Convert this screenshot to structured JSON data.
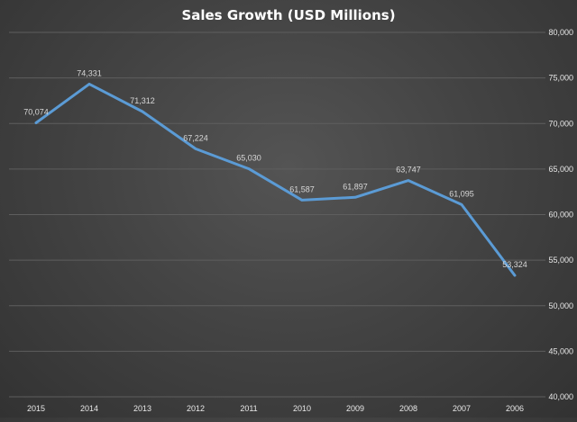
{
  "chart_data": {
    "type": "line",
    "title": "Sales Growth (USD Millions)",
    "xlabel": "",
    "ylabel": "",
    "categories": [
      "2015",
      "2014",
      "2013",
      "2012",
      "2011",
      "2010",
      "2009",
      "2008",
      "2007",
      "2006"
    ],
    "series": [
      {
        "values": [
          70074,
          74331,
          71312,
          67224,
          65030,
          61587,
          61897,
          63747,
          61095,
          53324
        ],
        "data_labels": [
          "70,074",
          "74,331",
          "71,312",
          "67,224",
          "65,030",
          "61,587",
          "61,897",
          "63,747",
          "61,095",
          "53,324"
        ]
      }
    ],
    "ylim": [
      40000,
      80000
    ],
    "yticks": [
      40000,
      45000,
      50000,
      55000,
      60000,
      65000,
      70000,
      75000,
      80000
    ],
    "ytick_labels": [
      "40,000",
      "45,000",
      "50,000",
      "55,000",
      "60,000",
      "65,000",
      "70,000",
      "75,000",
      "80,000"
    ],
    "y_axis_side": "right",
    "grid": true,
    "legend": "none",
    "colors": {
      "line": "#5b9bd5",
      "grid": "#5e5e5e",
      "text": "#e8e8e8"
    }
  }
}
